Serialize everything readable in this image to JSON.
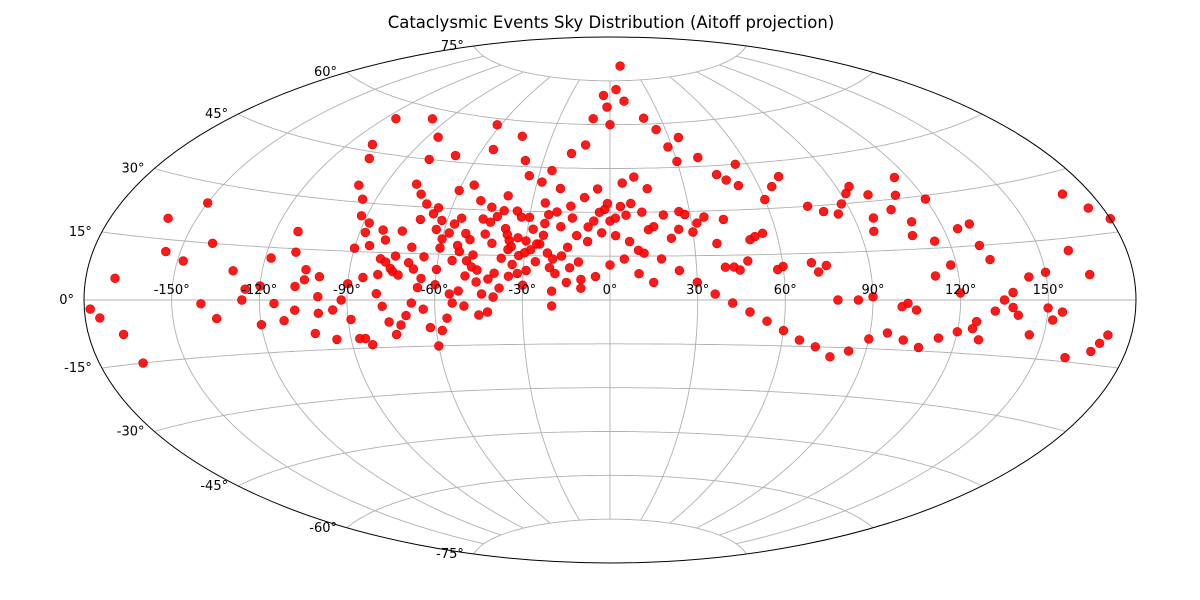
{
  "chart_data": {
    "type": "scatter",
    "projection": "aitoff",
    "title": "Cataclysmic Events Sky Distribution (Aitoff projection)",
    "grid": true,
    "marker_color": "#ff0000",
    "lon_ticks": [
      "-150°",
      "-120°",
      "-90°",
      "-60°",
      "-30°",
      "0°",
      "30°",
      "60°",
      "90°",
      "120°",
      "150°"
    ],
    "lat_ticks": [
      "75°",
      "60°",
      "45°",
      "30°",
      "15°",
      "0°",
      "-15°",
      "-30°",
      "-45°",
      "-60°",
      "-75°"
    ],
    "points": [
      [
        -170,
        5
      ],
      [
        -175,
        -4
      ],
      [
        -178,
        -2
      ],
      [
        -160,
        20
      ],
      [
        -148,
        10
      ],
      [
        -140,
        -1
      ],
      [
        -135,
        -5
      ],
      [
        -125,
        3
      ],
      [
        -120,
        -7
      ],
      [
        -118,
        12
      ],
      [
        -112,
        20
      ],
      [
        -110,
        14
      ],
      [
        -108,
        4
      ],
      [
        -105,
        9
      ],
      [
        -100,
        1
      ],
      [
        -100,
        -4
      ],
      [
        -95,
        -3
      ],
      [
        -95,
        -12
      ],
      [
        -92,
        0
      ],
      [
        -90,
        5
      ],
      [
        -90,
        16
      ],
      [
        -89,
        -6
      ],
      [
        -88,
        24
      ],
      [
        -85,
        7
      ],
      [
        -85,
        -12
      ],
      [
        -83,
        -14
      ],
      [
        -82,
        22
      ],
      [
        -80,
        13
      ],
      [
        -80,
        8
      ],
      [
        -78,
        12
      ],
      [
        -76,
        10
      ],
      [
        -75,
        9
      ],
      [
        -73,
        8
      ],
      [
        -70,
        12
      ],
      [
        -68,
        10
      ],
      [
        -65,
        7
      ],
      [
        -63,
        23
      ],
      [
        -60,
        20
      ],
      [
        -60,
        17
      ],
      [
        -57,
        25
      ],
      [
        -55,
        27
      ],
      [
        -55,
        13
      ],
      [
        -53,
        16
      ],
      [
        -50,
        20
      ],
      [
        -48,
        15
      ],
      [
        -45,
        22
      ],
      [
        -44,
        26
      ],
      [
        -42,
        28
      ],
      [
        -40,
        30
      ],
      [
        -38,
        24
      ],
      [
        -36,
        20
      ],
      [
        -35,
        18
      ],
      [
        -33,
        21
      ],
      [
        -32,
        15
      ],
      [
        -30,
        20
      ],
      [
        -29,
        10
      ],
      [
        -28,
        17
      ],
      [
        -26,
        13
      ],
      [
        -25,
        19
      ],
      [
        -24,
        22
      ],
      [
        -22,
        16
      ],
      [
        -21,
        11
      ],
      [
        -20,
        14
      ],
      [
        -20,
        -2
      ],
      [
        -19,
        9
      ],
      [
        -17,
        15
      ],
      [
        -15,
        18
      ],
      [
        -14,
        11
      ],
      [
        -12,
        22
      ],
      [
        -11,
        13
      ],
      [
        -10,
        7
      ],
      [
        -8,
        20
      ],
      [
        -6,
        27
      ],
      [
        -4,
        30
      ],
      [
        -2,
        31
      ],
      [
        -1,
        33
      ],
      [
        0,
        27
      ],
      [
        2,
        28
      ],
      [
        4,
        32
      ],
      [
        6,
        29
      ],
      [
        8,
        33
      ],
      [
        10,
        17
      ],
      [
        12,
        30
      ],
      [
        14,
        24
      ],
      [
        16,
        25
      ],
      [
        20,
        29
      ],
      [
        22,
        21
      ],
      [
        25,
        24
      ],
      [
        26,
        30
      ],
      [
        28,
        29
      ],
      [
        30,
        23
      ],
      [
        32,
        26
      ],
      [
        35,
        28
      ],
      [
        38,
        19
      ],
      [
        40,
        11
      ],
      [
        42,
        27
      ],
      [
        43,
        11
      ],
      [
        45,
        10
      ],
      [
        48,
        13
      ],
      [
        50,
        20
      ],
      [
        52,
        21
      ],
      [
        55,
        22
      ],
      [
        58,
        10
      ],
      [
        60,
        11
      ],
      [
        70,
        12
      ],
      [
        72,
        9
      ],
      [
        75,
        11
      ],
      [
        78,
        0
      ],
      [
        85,
        0
      ],
      [
        90,
        1
      ],
      [
        95,
        21
      ],
      [
        97,
        25
      ],
      [
        100,
        -2
      ],
      [
        102,
        -1
      ],
      [
        105,
        -3
      ],
      [
        108,
        19
      ],
      [
        110,
        23
      ],
      [
        112,
        7
      ],
      [
        115,
        17
      ],
      [
        118,
        10
      ],
      [
        120,
        2
      ],
      [
        125,
        -8
      ],
      [
        128,
        -11
      ],
      [
        130,
        21
      ],
      [
        132,
        11
      ],
      [
        135,
        0
      ],
      [
        138,
        -2
      ],
      [
        140,
        -4
      ],
      [
        145,
        -9
      ],
      [
        150,
        -2
      ],
      [
        152,
        -5
      ],
      [
        155,
        -3
      ],
      [
        160,
        12
      ],
      [
        170,
        -10
      ],
      [
        175,
        21
      ],
      [
        -115,
        -1
      ],
      [
        -102,
        -10
      ],
      [
        -87,
        -12
      ],
      [
        -80,
        2
      ],
      [
        -78,
        -2
      ],
      [
        -76,
        -7
      ],
      [
        -74,
        -11
      ],
      [
        -72,
        -8
      ],
      [
        -70,
        -5
      ],
      [
        -68,
        -1
      ],
      [
        -66,
        4
      ],
      [
        -64,
        -3
      ],
      [
        -62,
        -9
      ],
      [
        -60,
        -15
      ],
      [
        -58,
        -10
      ],
      [
        -56,
        -6
      ],
      [
        -54,
        -1
      ],
      [
        -52,
        3
      ],
      [
        -50,
        8
      ],
      [
        -48,
        11
      ],
      [
        -46,
        6
      ],
      [
        -44,
        2
      ],
      [
        -42,
        -4
      ],
      [
        -40,
        9
      ],
      [
        -38,
        14
      ],
      [
        -36,
        17
      ],
      [
        -34,
        12
      ],
      [
        -32,
        9
      ],
      [
        -30,
        16
      ],
      [
        -28,
        24
      ],
      [
        -26,
        19
      ],
      [
        -24,
        26
      ],
      [
        -30,
        28
      ],
      [
        -35,
        30
      ],
      [
        -40,
        35
      ],
      [
        -45,
        31
      ],
      [
        -50,
        33
      ],
      [
        -55,
        38
      ],
      [
        -60,
        36
      ],
      [
        -65,
        30
      ],
      [
        -70,
        26
      ],
      [
        -75,
        22
      ],
      [
        -80,
        19
      ],
      [
        -85,
        17
      ],
      [
        -88,
        21
      ],
      [
        -92,
        26
      ],
      [
        -95,
        31
      ],
      [
        -100,
        35
      ],
      [
        -105,
        43
      ],
      [
        -110,
        47
      ],
      [
        -115,
        55
      ],
      [
        -98,
        57
      ],
      [
        -85,
        52
      ],
      [
        -80,
        45
      ],
      [
        -70,
        47
      ],
      [
        -62,
        58
      ],
      [
        -55,
        50
      ],
      [
        -45,
        55
      ],
      [
        -38,
        47
      ],
      [
        -34,
        42
      ],
      [
        -28,
        40
      ],
      [
        -25,
        44
      ],
      [
        -20,
        38
      ],
      [
        -18,
        50
      ],
      [
        -12,
        53
      ],
      [
        -10,
        62
      ],
      [
        -5,
        70
      ],
      [
        -2,
        66
      ],
      [
        0,
        60
      ],
      [
        5,
        72
      ],
      [
        10,
        68
      ],
      [
        14,
        80
      ],
      [
        20,
        62
      ],
      [
        25,
        58
      ],
      [
        28,
        52
      ],
      [
        30,
        47
      ],
      [
        35,
        55
      ],
      [
        40,
        48
      ],
      [
        45,
        42
      ],
      [
        48,
        40
      ],
      [
        52,
        38
      ],
      [
        55,
        45
      ],
      [
        60,
        33
      ],
      [
        65,
        37
      ],
      [
        70,
        40
      ],
      [
        75,
        30
      ],
      [
        80,
        28
      ],
      [
        85,
        27
      ],
      [
        88,
        30
      ],
      [
        92,
        33
      ],
      [
        95,
        35
      ],
      [
        100,
        32
      ],
      [
        105,
        27
      ],
      [
        110,
        31
      ],
      [
        115,
        36
      ],
      [
        120,
        29
      ],
      [
        125,
        20
      ],
      [
        130,
        15
      ],
      [
        -60,
        5
      ],
      [
        -55,
        2
      ],
      [
        -50,
        -2
      ],
      [
        -45,
        -5
      ],
      [
        -40,
        1
      ],
      [
        -20,
        3
      ],
      [
        -15,
        6
      ],
      [
        -10,
        4
      ],
      [
        -5,
        8
      ],
      [
        0,
        12
      ],
      [
        5,
        14
      ],
      [
        10,
        9
      ],
      [
        15,
        6
      ],
      [
        -100,
        7
      ],
      [
        -105,
        6
      ],
      [
        -108,
        -3
      ],
      [
        -112,
        -6
      ],
      [
        -120,
        4
      ],
      [
        -126,
        0
      ],
      [
        -130,
        8
      ],
      [
        -140,
        15
      ],
      [
        -150,
        25
      ],
      [
        -155,
        12
      ],
      [
        -165,
        -15
      ],
      [
        -168,
        -8
      ],
      [
        150,
        7
      ],
      [
        160,
        -14
      ],
      [
        165,
        6
      ],
      [
        170,
        25
      ],
      [
        172,
        -8
      ],
      [
        168,
        -12
      ],
      [
        180,
        18
      ],
      [
        -60,
        10
      ],
      [
        -65,
        14
      ],
      [
        -70,
        17
      ],
      [
        -75,
        14
      ],
      [
        -52,
        22
      ],
      [
        -47,
        27
      ],
      [
        -42,
        19
      ],
      [
        -37,
        22
      ],
      [
        -33,
        28
      ],
      [
        -23,
        29
      ],
      [
        -18,
        25
      ],
      [
        -14,
        28
      ],
      [
        -8,
        25
      ],
      [
        -3,
        23
      ],
      [
        2,
        22
      ],
      [
        7,
        20
      ],
      [
        12,
        16
      ],
      [
        18,
        14
      ],
      [
        24,
        10
      ],
      [
        30,
        6
      ],
      [
        36,
        2
      ],
      [
        42,
        -1
      ],
      [
        48,
        -4
      ],
      [
        54,
        -7
      ],
      [
        60,
        -10
      ],
      [
        66,
        -13
      ],
      [
        72,
        -15
      ],
      [
        78,
        -18
      ],
      [
        84,
        -16
      ],
      [
        90,
        -12
      ],
      [
        96,
        -10
      ],
      [
        102,
        -12
      ],
      [
        108,
        -14
      ],
      [
        114,
        -11
      ],
      [
        120,
        -9
      ],
      [
        126,
        -6
      ],
      [
        132,
        -3
      ],
      [
        138,
        2
      ],
      [
        144,
        6
      ],
      [
        -25,
        33
      ],
      [
        -20,
        30
      ],
      [
        -15,
        32
      ],
      [
        -10,
        35
      ],
      [
        -5,
        38
      ],
      [
        5,
        40
      ],
      [
        10,
        42
      ],
      [
        15,
        38
      ],
      [
        -30,
        5
      ],
      [
        -35,
        8
      ],
      [
        -38,
        4
      ],
      [
        -42,
        7
      ],
      [
        -46,
        10
      ],
      [
        -50,
        13
      ],
      [
        -54,
        18
      ],
      [
        -58,
        22
      ],
      [
        -62,
        26
      ],
      [
        -66,
        28
      ],
      [
        -70,
        31
      ],
      [
        -74,
        34
      ],
      [
        -78,
        37
      ]
    ]
  }
}
